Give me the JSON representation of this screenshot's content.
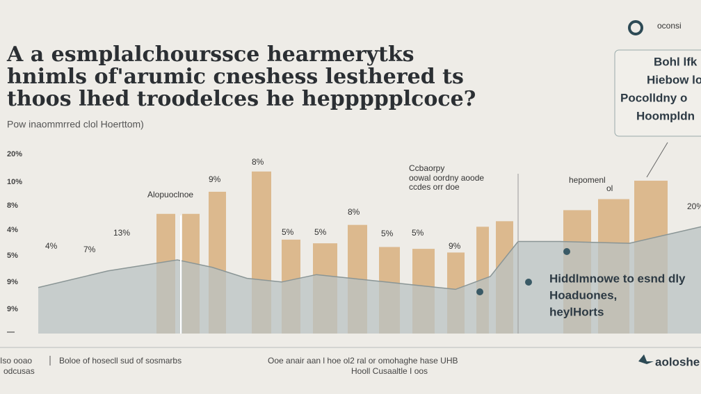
{
  "chart_data": {
    "type": "bar",
    "title_lines": [
      "A a esmplalchourssce hearmerytks",
      "hnimls of'arumic cneshess lesthered ts",
      "thoos lhed troodelces he heppppplcoce?"
    ],
    "subtitle": "Pow inaommrred clol Hoerttom)",
    "y_axis_texts": [
      "20%",
      "10%",
      "8%",
      "4%",
      "5%",
      "9%",
      "9%",
      "—"
    ],
    "categories": [
      null,
      null,
      null,
      null,
      null,
      null,
      null,
      null,
      null,
      null,
      null,
      null,
      null,
      null,
      null
    ],
    "values": [
      65,
      65,
      77,
      88,
      51,
      49,
      59,
      47,
      46,
      44,
      58,
      61,
      67,
      73,
      83
    ],
    "color": "#dcb98e",
    "ylim": [
      0,
      100
    ],
    "area": {
      "color": "#b9c3c3",
      "x": [
        0,
        100,
        200,
        250,
        300,
        350,
        400,
        450,
        500,
        550,
        600,
        650,
        690,
        750,
        850,
        953
      ],
      "values": [
        25,
        34,
        40,
        36,
        30,
        28,
        32,
        30,
        28,
        26,
        24,
        31,
        50,
        50,
        49,
        58
      ],
      "xlim": [
        0,
        953
      ]
    },
    "annotations": [
      "8%",
      "9%",
      "Alopuoclnoe",
      "13%",
      "4%",
      "7%",
      "5%",
      "5%",
      "8%",
      "5%",
      "5%",
      "9%",
      "Ccbaorpy",
      "oowal oordny aoode",
      "ccdes orr doe",
      "hepomenl",
      "ol",
      "20%"
    ],
    "callout_texts": [
      "Hiddlmnowe to esnd dly",
      "Hoaduones,",
      "heylHorts"
    ],
    "box_texts": [
      "Bohl lfk",
      "Hiebow lo",
      "Pocolldny o",
      "Hoompldn"
    ],
    "corner_text": "oconsi",
    "footer_texts": [
      "Iso ooao",
      "odcusas",
      "Boloe of hosecll sud of sosmarbs",
      "Ooe anair aan l hoe ol2 ral or omohaghe hase UHB",
      "Hooll Cusaaltle I oos",
      "aoloshe"
    ]
  }
}
